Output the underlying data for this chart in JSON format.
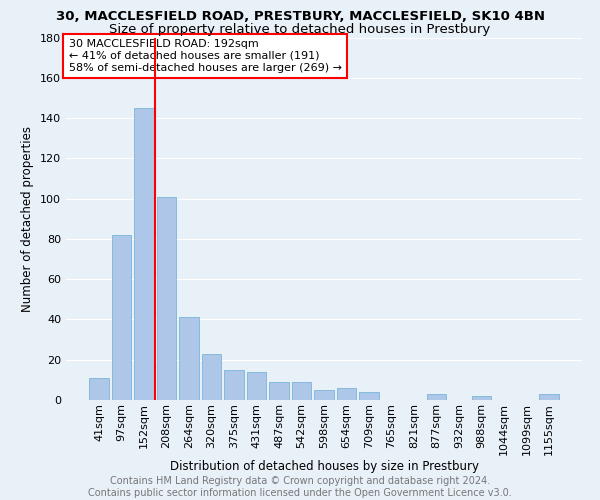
{
  "title": "30, MACCLESFIELD ROAD, PRESTBURY, MACCLESFIELD, SK10 4BN",
  "subtitle": "Size of property relative to detached houses in Prestbury",
  "xlabel": "Distribution of detached houses by size in Prestbury",
  "ylabel": "Number of detached properties",
  "categories": [
    "41sqm",
    "97sqm",
    "152sqm",
    "208sqm",
    "264sqm",
    "320sqm",
    "375sqm",
    "431sqm",
    "487sqm",
    "542sqm",
    "598sqm",
    "654sqm",
    "709sqm",
    "765sqm",
    "821sqm",
    "877sqm",
    "932sqm",
    "988sqm",
    "1044sqm",
    "1099sqm",
    "1155sqm"
  ],
  "values": [
    11,
    82,
    145,
    101,
    41,
    23,
    15,
    14,
    9,
    9,
    5,
    6,
    4,
    0,
    0,
    3,
    0,
    2,
    0,
    0,
    3
  ],
  "bar_color": "#aec7e8",
  "bar_edge_color": "#6baed6",
  "vline_x": 2.5,
  "vline_color": "red",
  "annotation_text": "30 MACCLESFIELD ROAD: 192sqm\n← 41% of detached houses are smaller (191)\n58% of semi-detached houses are larger (269) →",
  "annotation_box_color": "white",
  "annotation_box_edge_color": "red",
  "ylim": [
    0,
    180
  ],
  "yticks": [
    0,
    20,
    40,
    60,
    80,
    100,
    120,
    140,
    160,
    180
  ],
  "footer_text": "Contains HM Land Registry data © Crown copyright and database right 2024.\nContains public sector information licensed under the Open Government Licence v3.0.",
  "background_color": "#e8f0f8",
  "grid_color": "white",
  "title_fontsize": 9.5,
  "subtitle_fontsize": 9.5,
  "ylabel_fontsize": 8.5,
  "xlabel_fontsize": 8.5,
  "tick_fontsize": 8,
  "annotation_fontsize": 8,
  "footer_fontsize": 7
}
